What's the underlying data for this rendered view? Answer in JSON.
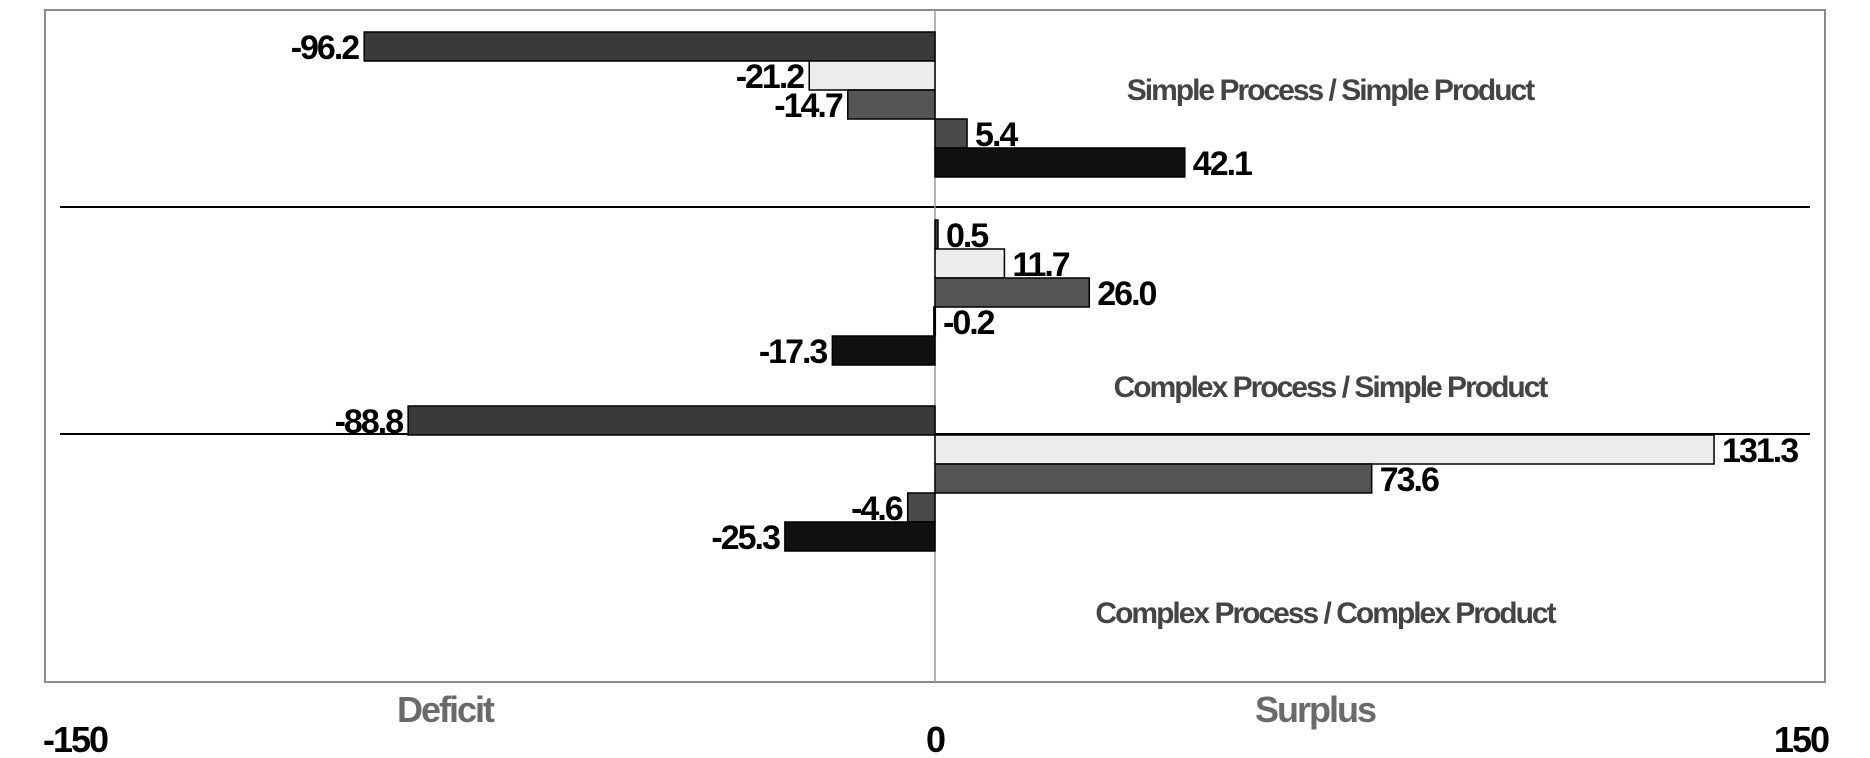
{
  "chart_data": {
    "type": "bar",
    "orientation": "horizontal",
    "xlim": [
      -150,
      150
    ],
    "x_ticks": [
      "-150",
      "0",
      "150"
    ],
    "side_labels": {
      "left": "Deficit",
      "right": "Surplus"
    },
    "grid": false,
    "legend": "none",
    "groups": [
      {
        "name": "Simple Process / Simple Product",
        "values": [
          -96.2,
          -21.2,
          -14.7,
          5.4,
          42.1
        ],
        "labels": [
          "-96.2",
          "-21.2",
          "-14.7",
          "5.4",
          "42.1"
        ]
      },
      {
        "name": "Complex Process / Simple Product",
        "values": [
          0.5,
          11.7,
          26.0,
          -0.2,
          -17.3
        ],
        "labels": [
          "0.5",
          "11.7",
          "26.0",
          "-0.2",
          "-17.3"
        ]
      },
      {
        "name": "Complex Process / Complex Product",
        "values": [
          -88.8,
          131.3,
          73.6,
          -4.6,
          -25.3
        ],
        "labels": [
          "-88.8",
          "131.3",
          "73.6",
          "-4.6",
          "-25.3"
        ]
      }
    ],
    "bar_colors": [
      "#3a3a3a",
      "#ececec",
      "#555555",
      "#4a4a4a",
      "#111111"
    ]
  }
}
